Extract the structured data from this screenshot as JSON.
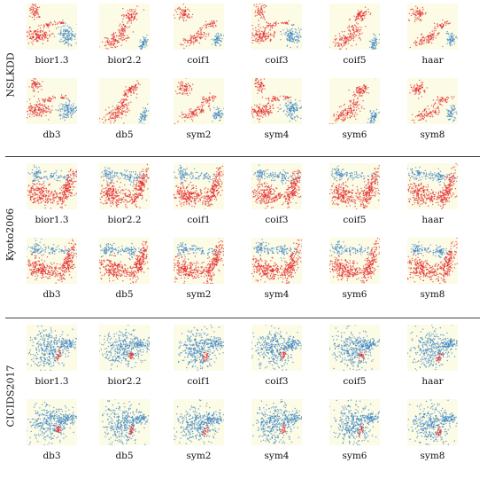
{
  "colors": {
    "red": "#e4262a",
    "blue": "#3a82c4",
    "tile_bg": "#fbfbe6"
  },
  "sections": [
    {
      "name": "NSLKDD",
      "rows": [
        [
          "bior1.3",
          "bior2.2",
          "coif1",
          "coif3",
          "coif5",
          "haar"
        ],
        [
          "db3",
          "db5",
          "sym2",
          "sym4",
          "sym6",
          "sym8"
        ]
      ]
    },
    {
      "name": "Kyoto2006",
      "rows": [
        [
          "bior1.3",
          "bior2.2",
          "coif1",
          "coif3",
          "coif5",
          "haar"
        ],
        [
          "db3",
          "db5",
          "sym2",
          "sym4",
          "sym6",
          "sym8"
        ]
      ]
    },
    {
      "name": "CICIDS2017",
      "rows": [
        [
          "bior1.3",
          "bior2.2",
          "coif1",
          "coif3",
          "coif5",
          "haar"
        ],
        [
          "db3",
          "db5",
          "sym2",
          "sym4",
          "sym6",
          "sym8"
        ]
      ]
    }
  ]
}
